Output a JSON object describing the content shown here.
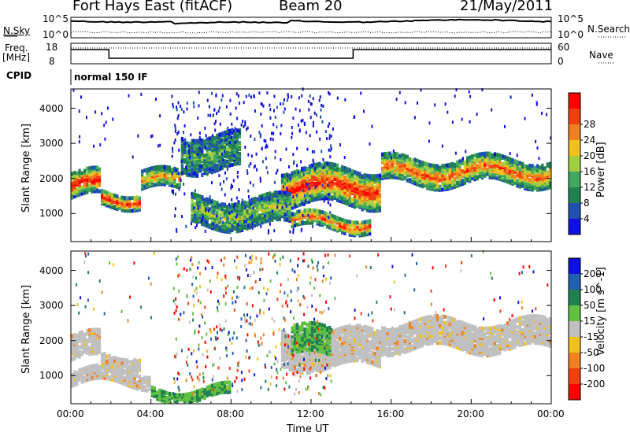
{
  "header": {
    "site": "Fort Hays East (fitACF)",
    "beam": "Beam 20",
    "date": "21/May/2011"
  },
  "params": {
    "nsky_label": "N.Sky",
    "nsky_top": "10^5",
    "nsky_bottom": "10^0",
    "nsearch_label": "N.Search",
    "nsearch_top": "10^5",
    "nsearch_bottom": "10^0",
    "freq_label_1": "Freq.",
    "freq_label_2": "[MHz]",
    "freq_top": "18",
    "freq_bottom": "8",
    "nave_label": "Nave",
    "nave_top": "60",
    "nave_bottom": "0",
    "cpid_label": "CPID",
    "cpid_value": "normal 150 IF"
  },
  "chart_data": [
    {
      "type": "heatmap",
      "name": "power-panel",
      "ylabel": "Slant Range [km]",
      "ylim": [
        200,
        4550
      ],
      "yticks": [
        "1000",
        "2000",
        "3000",
        "4000"
      ],
      "xlim": [
        0,
        24
      ],
      "colorbar": {
        "label": "Power [dB]",
        "ticks": [
          "4",
          "8",
          "12",
          "16",
          "20",
          "24",
          "28"
        ],
        "colors": [
          "#1010e0",
          "#2050b0",
          "#208050",
          "#40a860",
          "#a0d040",
          "#f0c020",
          "#f08020",
          "#f04010",
          "#ff0000"
        ]
      },
      "bands": [
        {
          "t0": 0.0,
          "t1": 1.5,
          "r0": 1400,
          "r1": 2100,
          "intensity": 0.9
        },
        {
          "t0": 1.5,
          "t1": 3.5,
          "r0": 1200,
          "r1": 1600,
          "intensity": 0.85
        },
        {
          "t0": 3.5,
          "t1": 5.5,
          "r0": 1600,
          "r1": 2100,
          "intensity": 0.6
        },
        {
          "t0": 5.5,
          "t1": 8.5,
          "r0": 2200,
          "r1": 3200,
          "intensity": 0.2
        },
        {
          "t0": 10.5,
          "t1": 15.5,
          "r0": 1200,
          "r1": 2200,
          "intensity": 0.85
        },
        {
          "t0": 11.0,
          "t1": 15.0,
          "r0": 500,
          "r1": 900,
          "intensity": 0.75
        },
        {
          "t0": 15.5,
          "t1": 24.0,
          "r0": 1800,
          "r1": 2500,
          "intensity": 0.7
        },
        {
          "t0": 6.0,
          "t1": 11.0,
          "r0": 600,
          "r1": 1400,
          "intensity": 0.35
        }
      ]
    },
    {
      "type": "heatmap",
      "name": "velocity-panel",
      "ylabel": "Slant Range [km]",
      "xlabel": "Time UT",
      "ylim": [
        200,
        4550
      ],
      "yticks": [
        "1000",
        "2000",
        "3000",
        "4000"
      ],
      "xlim": [
        0,
        24
      ],
      "xticks": [
        "00:00",
        "04:00",
        "08:00",
        "12:00",
        "16:00",
        "20:00",
        "00:00"
      ],
      "colorbar": {
        "label": "Velocity [m s^-1]",
        "ticks": [
          "200",
          "100",
          "50",
          "15",
          "-15",
          "-50",
          "-100",
          "-200"
        ],
        "colors": [
          "#1010e0",
          "#2060b0",
          "#208050",
          "#60c040",
          "#c0c0c0",
          "#f0c020",
          "#f08020",
          "#f04010",
          "#ff0000"
        ]
      },
      "bands": [
        {
          "t0": 0.0,
          "t1": 1.5,
          "r0": 1400,
          "r1": 2100,
          "v": 0
        },
        {
          "t0": 1.5,
          "t1": 3.5,
          "r0": 1200,
          "r1": 1600,
          "v": 0
        },
        {
          "t0": 10.5,
          "t1": 15.5,
          "r0": 1200,
          "r1": 2200,
          "v": 0
        },
        {
          "t0": 15.5,
          "t1": 24.0,
          "r0": 1700,
          "r1": 2500,
          "v": 0
        },
        {
          "t0": 4.0,
          "t1": 8.0,
          "r0": 300,
          "r1": 600,
          "v": 40
        },
        {
          "t0": 11.0,
          "t1": 13.0,
          "r0": 1500,
          "r1": 2300,
          "v": 35
        },
        {
          "t0": 0.0,
          "t1": 4.0,
          "r0": 700,
          "r1": 1100,
          "v": 0
        }
      ]
    }
  ]
}
